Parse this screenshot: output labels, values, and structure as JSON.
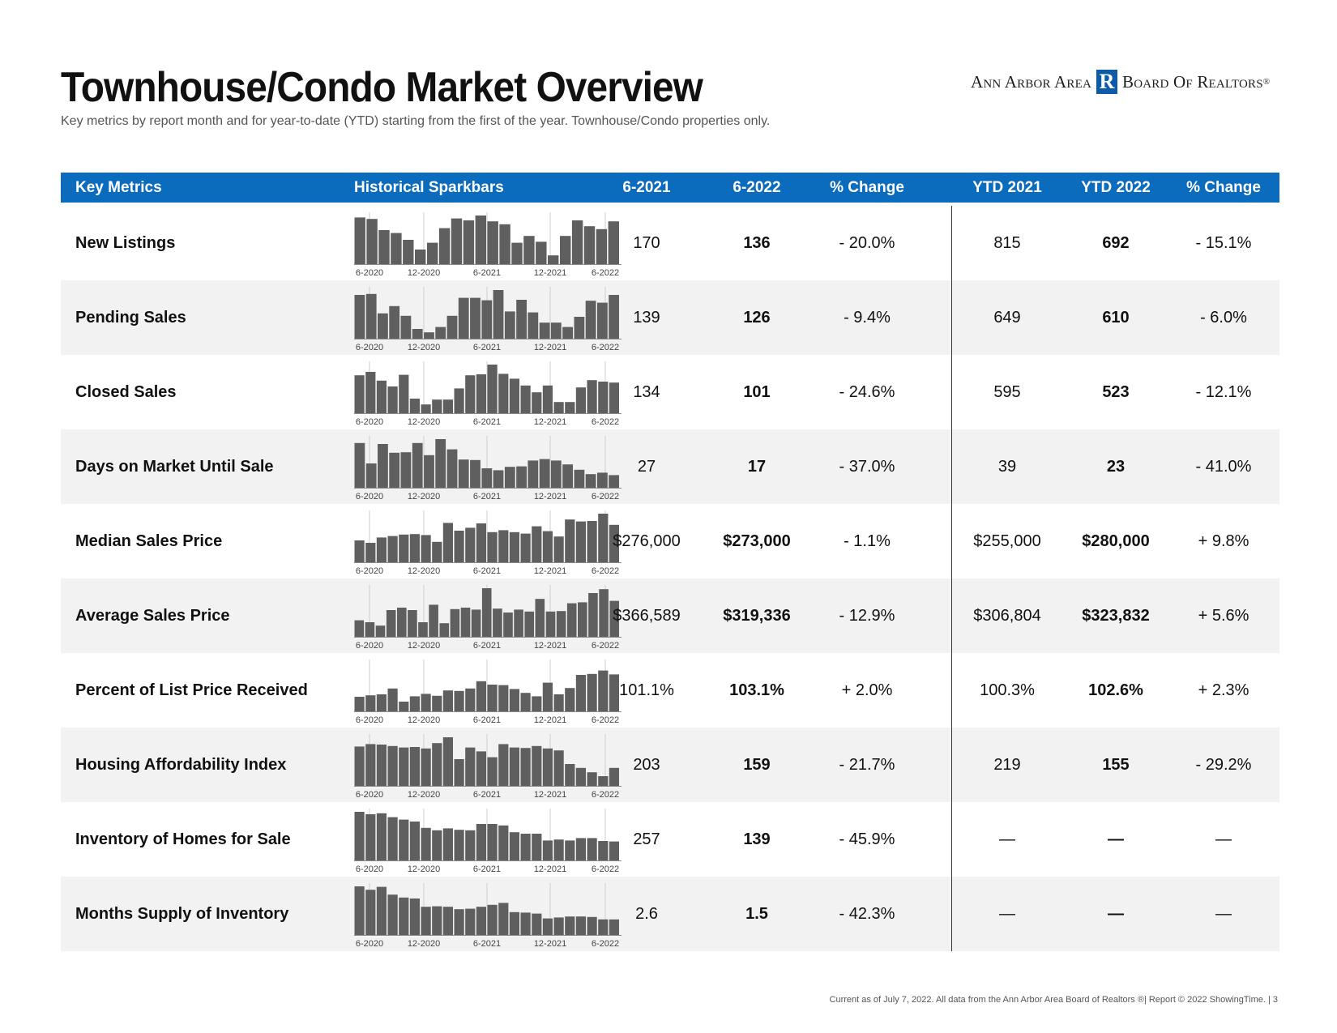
{
  "header": {
    "title": "Townhouse/Condo Market Overview",
    "subtitle": "Key metrics by report month and for year-to-date (YTD) starting from the first of the year. Townhouse/Condo properties only.",
    "logo_left": "Ann Arbor Area",
    "logo_mark": "R",
    "logo_right": "Board Of Realtors",
    "logo_reg": "®"
  },
  "table": {
    "columns": [
      "Key Metrics",
      "Historical Sparkbars",
      "6-2021",
      "6-2022",
      "% Change",
      "YTD 2021",
      "YTD 2022",
      "% Change"
    ],
    "spark_labels": [
      "6-2020",
      "12-2020",
      "6-2021",
      "12-2021",
      "6-2022"
    ],
    "rows": [
      {
        "metric": "New Listings",
        "m2021": "170",
        "m2022": "136",
        "pct": "- 20.0%",
        "ytd2021": "815",
        "ytd2022": "692",
        "ytd_pct": "- 15.1%",
        "spark": [
          0.96,
          0.93,
          0.7,
          0.64,
          0.5,
          0.3,
          0.44,
          0.74,
          0.94,
          0.9,
          1.0,
          0.88,
          0.82,
          0.44,
          0.58,
          0.46,
          0.18,
          0.58,
          0.9,
          0.78,
          0.72,
          0.88
        ]
      },
      {
        "metric": "Pending Sales",
        "m2021": "139",
        "m2022": "126",
        "pct": "- 9.4%",
        "ytd2021": "649",
        "ytd2022": "610",
        "ytd_pct": "- 6.0%",
        "spark": [
          0.9,
          0.92,
          0.52,
          0.67,
          0.47,
          0.2,
          0.13,
          0.24,
          0.47,
          0.84,
          0.84,
          0.79,
          1.0,
          0.56,
          0.8,
          0.54,
          0.33,
          0.33,
          0.24,
          0.45,
          0.78,
          0.74,
          0.9
        ]
      },
      {
        "metric": "Closed Sales",
        "m2021": "134",
        "m2022": "101",
        "pct": "- 24.6%",
        "ytd2021": "595",
        "ytd2022": "523",
        "ytd_pct": "- 12.1%",
        "spark": [
          0.78,
          0.85,
          0.67,
          0.55,
          0.79,
          0.3,
          0.18,
          0.28,
          0.28,
          0.51,
          0.78,
          0.8,
          1.0,
          0.81,
          0.71,
          0.57,
          0.43,
          0.57,
          0.23,
          0.23,
          0.53,
          0.68,
          0.65,
          0.63
        ]
      },
      {
        "metric": "Days on Market Until Sale",
        "m2021": "27",
        "m2022": "17",
        "pct": "- 37.0%",
        "ytd2021": "39",
        "ytd2022": "23",
        "ytd_pct": "- 41.0%",
        "spark": [
          0.92,
          0.5,
          0.9,
          0.72,
          0.73,
          0.92,
          0.67,
          1.0,
          0.79,
          0.58,
          0.57,
          0.4,
          0.36,
          0.43,
          0.44,
          0.56,
          0.59,
          0.56,
          0.48,
          0.37,
          0.28,
          0.31,
          0.26
        ]
      },
      {
        "metric": "Median Sales Price",
        "m2021": "$276,000",
        "m2022": "$273,000",
        "pct": "- 1.1%",
        "ytd2021": "$255,000",
        "ytd2022": "$280,000",
        "ytd_pct": "+ 9.8%",
        "spark": [
          0.45,
          0.4,
          0.51,
          0.54,
          0.57,
          0.58,
          0.56,
          0.42,
          0.81,
          0.65,
          0.71,
          0.8,
          0.62,
          0.66,
          0.62,
          0.59,
          0.74,
          0.64,
          0.53,
          0.88,
          0.84,
          0.85,
          1.0,
          0.77
        ]
      },
      {
        "metric": "Average Sales Price",
        "m2021": "$366,589",
        "m2022": "$319,336",
        "pct": "- 12.9%",
        "ytd2021": "$306,804",
        "ytd2022": "$323,832",
        "ytd_pct": "+ 5.6%",
        "spark": [
          0.34,
          0.3,
          0.23,
          0.55,
          0.6,
          0.55,
          0.3,
          0.66,
          0.28,
          0.57,
          0.6,
          0.56,
          1.0,
          0.58,
          0.5,
          0.56,
          0.52,
          0.78,
          0.52,
          0.53,
          0.69,
          0.71,
          0.9,
          0.98,
          0.74
        ]
      },
      {
        "metric": "Percent of List Price Received",
        "m2021": "101.1%",
        "m2022": "103.1%",
        "pct": "+ 2.0%",
        "ytd2021": "100.3%",
        "ytd2022": "102.6%",
        "ytd_pct": "+ 2.3%",
        "spark": [
          0.3,
          0.33,
          0.35,
          0.47,
          0.2,
          0.31,
          0.36,
          0.32,
          0.43,
          0.42,
          0.47,
          0.62,
          0.55,
          0.54,
          0.46,
          0.38,
          0.31,
          0.59,
          0.35,
          0.48,
          0.75,
          0.77,
          0.84,
          0.76
        ]
      },
      {
        "metric": "Housing Affordability Index",
        "m2021": "203",
        "m2022": "159",
        "pct": "- 21.7%",
        "ytd2021": "219",
        "ytd2022": "155",
        "ytd_pct": "- 29.2%",
        "spark": [
          0.81,
          0.86,
          0.85,
          0.82,
          0.79,
          0.8,
          0.77,
          0.88,
          1.0,
          0.55,
          0.79,
          0.71,
          0.59,
          0.86,
          0.79,
          0.78,
          0.82,
          0.77,
          0.73,
          0.45,
          0.37,
          0.28,
          0.2,
          0.37
        ]
      },
      {
        "metric": "Inventory of Homes for Sale",
        "m2021": "257",
        "m2022": "139",
        "pct": "- 45.9%",
        "ytd2021": "—",
        "ytd2022": "—",
        "ytd_pct": "—",
        "spark": [
          1.0,
          0.95,
          0.97,
          0.89,
          0.84,
          0.8,
          0.67,
          0.62,
          0.66,
          0.63,
          0.62,
          0.75,
          0.75,
          0.72,
          0.58,
          0.55,
          0.55,
          0.41,
          0.43,
          0.41,
          0.46,
          0.46,
          0.4,
          0.39
        ]
      },
      {
        "metric": "Months Supply of Inventory",
        "m2021": "2.6",
        "m2022": "1.5",
        "pct": "- 42.3%",
        "ytd2021": "—",
        "ytd2022": "—",
        "ytd_pct": "—",
        "spark": [
          1.0,
          0.93,
          0.99,
          0.83,
          0.77,
          0.75,
          0.58,
          0.59,
          0.58,
          0.53,
          0.54,
          0.58,
          0.62,
          0.66,
          0.47,
          0.46,
          0.44,
          0.34,
          0.36,
          0.38,
          0.38,
          0.37,
          0.32,
          0.32
        ]
      }
    ]
  },
  "footer": {
    "note": "Current as of July 7, 2022. All data from the Ann Arbor Area Board of Realtors ®| Report © 2022 ShowingTime. | 3"
  }
}
